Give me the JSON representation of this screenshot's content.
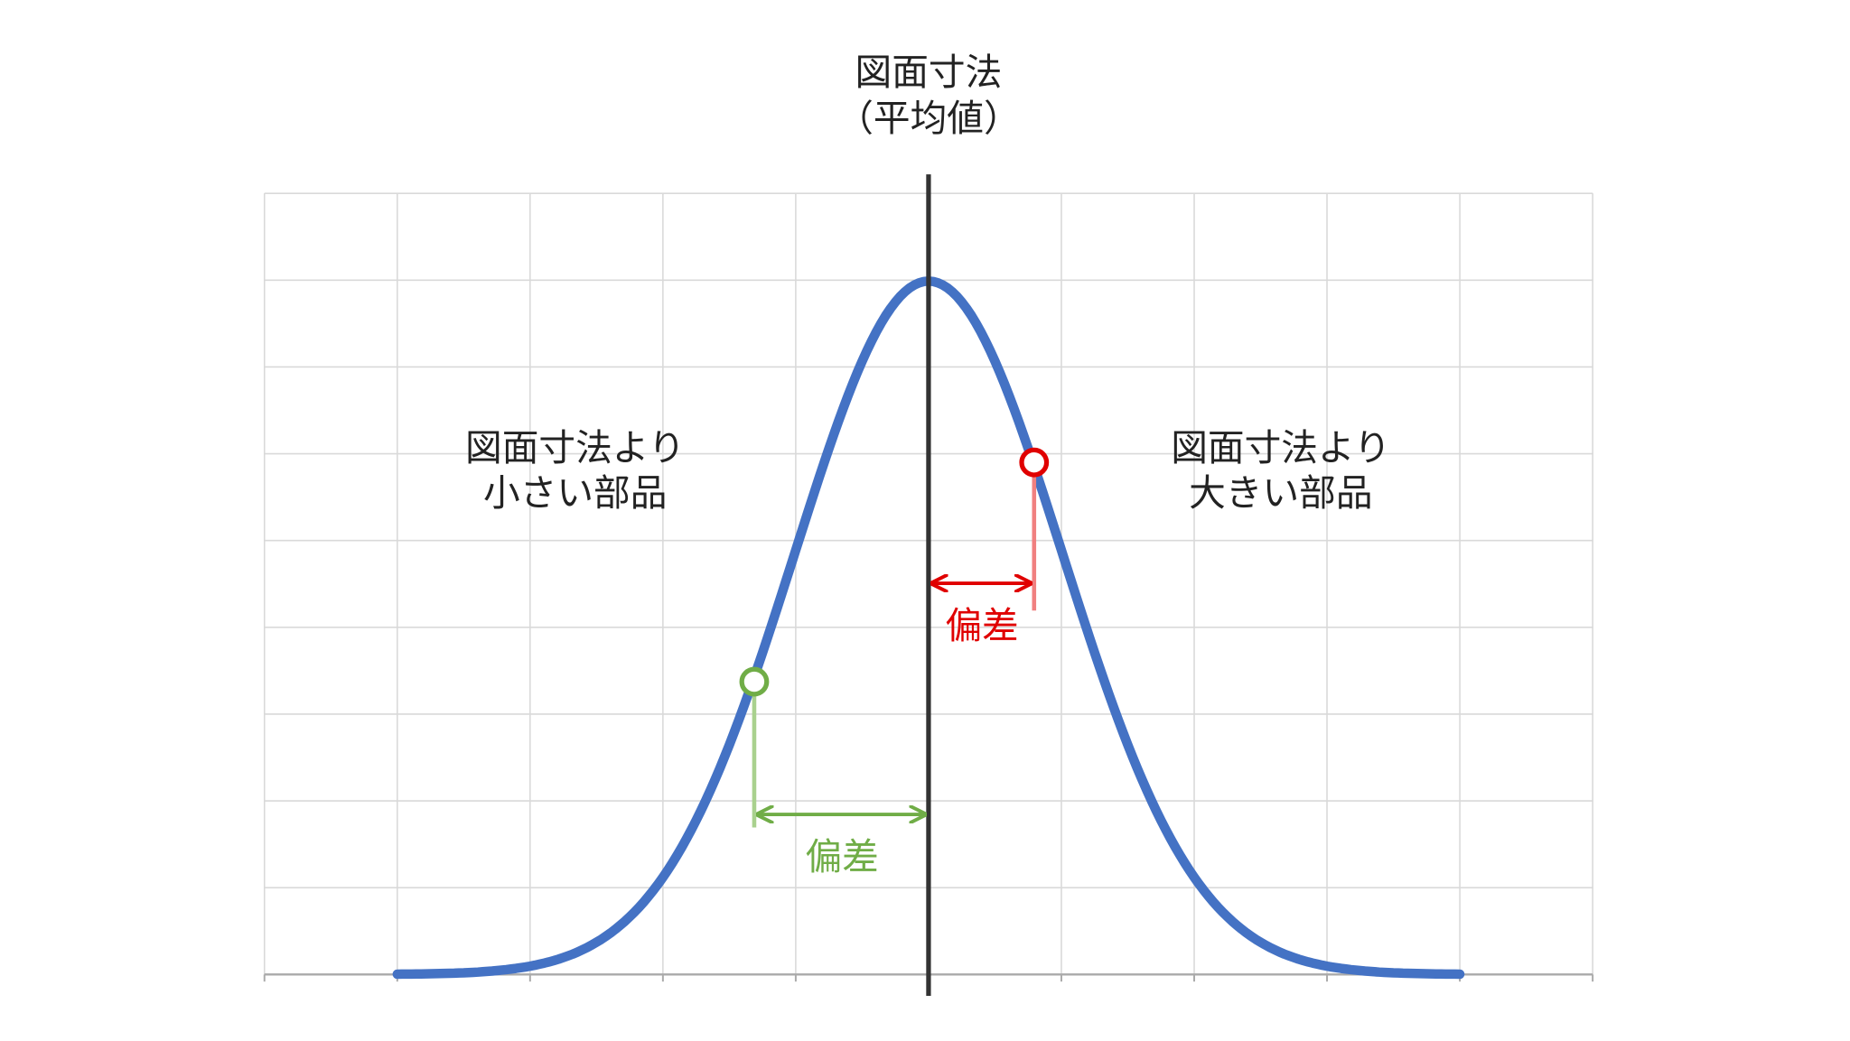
{
  "title": {
    "line1": "図面寸法",
    "line2": "（平均値）"
  },
  "left_label": {
    "lines": [
      "図面寸法より",
      "小さい部品"
    ]
  },
  "right_label": {
    "lines": [
      "図面寸法より",
      "大きい部品"
    ]
  },
  "deviation_red": "偏差",
  "deviation_green": "偏差"
}
